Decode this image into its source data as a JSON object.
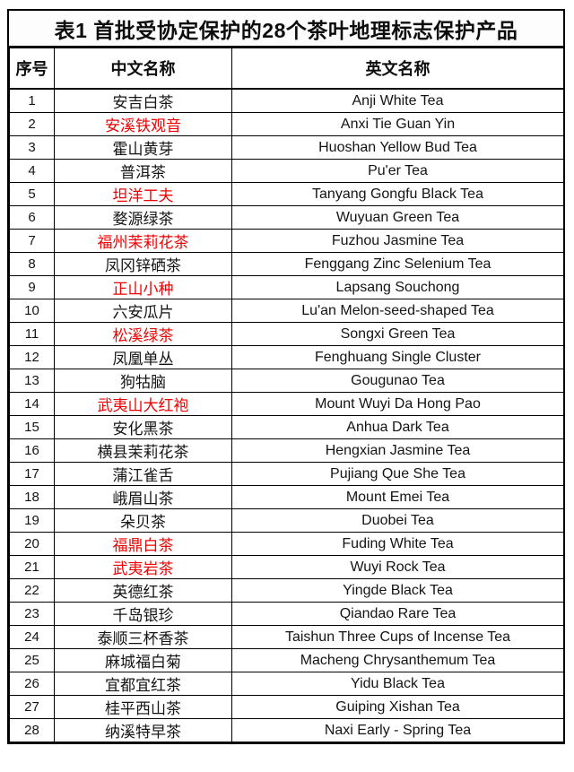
{
  "title": "表1 首批受协定保护的28个茶叶地理标志保护产品",
  "columns": {
    "index": "序号",
    "chinese": "中文名称",
    "english": "英文名称"
  },
  "colors": {
    "highlight_red": "#f20000",
    "text_black": "#141414",
    "border": "#000000"
  },
  "rows": [
    {
      "no": "1",
      "cn": "安吉白茶",
      "en": "Anji White Tea",
      "red": false
    },
    {
      "no": "2",
      "cn": "安溪铁观音",
      "en": "Anxi Tie Guan Yin",
      "red": true
    },
    {
      "no": "3",
      "cn": "霍山黄芽",
      "en": "Huoshan Yellow Bud Tea",
      "red": false
    },
    {
      "no": "4",
      "cn": "普洱茶",
      "en": "Pu'er Tea",
      "red": false
    },
    {
      "no": "5",
      "cn": "坦洋工夫",
      "en": "Tanyang Gongfu Black Tea",
      "red": true
    },
    {
      "no": "6",
      "cn": "婺源绿茶",
      "en": "Wuyuan Green Tea",
      "red": false
    },
    {
      "no": "7",
      "cn": "福州茉莉花茶",
      "en": "Fuzhou Jasmine Tea",
      "red": true
    },
    {
      "no": "8",
      "cn": "凤冈锌硒茶",
      "en": "Fenggang Zinc Selenium Tea",
      "red": false
    },
    {
      "no": "9",
      "cn": "正山小种",
      "en": "Lapsang Souchong",
      "red": true
    },
    {
      "no": "10",
      "cn": "六安瓜片",
      "en": "Lu'an Melon-seed-shaped Tea",
      "red": false
    },
    {
      "no": "11",
      "cn": "松溪绿茶",
      "en": "Songxi Green Tea",
      "red": true
    },
    {
      "no": "12",
      "cn": "凤凰单丛",
      "en": "Fenghuang Single Cluster",
      "red": false
    },
    {
      "no": "13",
      "cn": "狗牯脑",
      "en": "Gougunao Tea",
      "red": false
    },
    {
      "no": "14",
      "cn": "武夷山大红袍",
      "en": "Mount Wuyi Da Hong Pao",
      "red": true
    },
    {
      "no": "15",
      "cn": "安化黑茶",
      "en": "Anhua Dark Tea",
      "red": false
    },
    {
      "no": "16",
      "cn": "横县茉莉花茶",
      "en": "Hengxian Jasmine Tea",
      "red": false
    },
    {
      "no": "17",
      "cn": "蒲江雀舌",
      "en": "Pujiang Que She Tea",
      "red": false
    },
    {
      "no": "18",
      "cn": "峨眉山茶",
      "en": "Mount Emei Tea",
      "red": false
    },
    {
      "no": "19",
      "cn": "朵贝茶",
      "en": "Duobei Tea",
      "red": false
    },
    {
      "no": "20",
      "cn": "福鼎白茶",
      "en": "Fuding White Tea",
      "red": true
    },
    {
      "no": "21",
      "cn": "武夷岩茶",
      "en": "Wuyi Rock Tea",
      "red": true
    },
    {
      "no": "22",
      "cn": "英德红茶",
      "en": "Yingde Black Tea",
      "red": false
    },
    {
      "no": "23",
      "cn": "千岛银珍",
      "en": "Qiandao Rare Tea",
      "red": false
    },
    {
      "no": "24",
      "cn": "泰顺三杯香茶",
      "en": "Taishun Three Cups of Incense Tea",
      "red": false
    },
    {
      "no": "25",
      "cn": "麻城福白菊",
      "en": "Macheng Chrysanthemum Tea",
      "red": false
    },
    {
      "no": "26",
      "cn": "宜都宜红茶",
      "en": "Yidu Black Tea",
      "red": false
    },
    {
      "no": "27",
      "cn": "桂平西山茶",
      "en": "Guiping Xishan Tea",
      "red": false
    },
    {
      "no": "28",
      "cn": "纳溪特早茶",
      "en": "Naxi Early - Spring Tea",
      "red": false
    }
  ]
}
